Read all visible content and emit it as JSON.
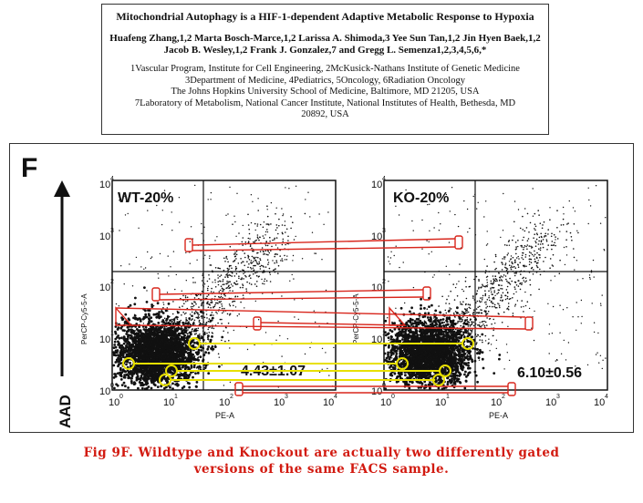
{
  "paper": {
    "title": "Mitochondrial Autophagy is a HIF-1-dependent Adaptive Metabolic Response to Hypoxia",
    "authors_line1": "Huafeng Zhang,1,2 Marta Bosch-Marce,1,2 Larissa A. Shimoda,3 Yee Sun Tan,1,2 Jin Hyen Baek,1,2",
    "authors_line2": "Jacob B. Wesley,1,2 Frank J. Gonzalez,7 and Gregg L. Semenza1,2,3,4,5,6,*",
    "affiliations": [
      "1Vascular Program, Institute for Cell Engineering, 2McKusick-Nathans Institute of Genetic Medicine",
      "3Department of Medicine, 4Pediatrics, 5Oncology, 6Radiation Oncology",
      "The Johns Hopkins University School of Medicine, Baltimore, MD 21205, USA",
      "7Laboratory of Metabolism, National Cancer Institute, National Institutes of Health, Bethesda, MD",
      "20892, USA"
    ]
  },
  "figure": {
    "panel_letter": "F",
    "y_axis_title": "AAD",
    "left_plot": {
      "label": "WT-20%",
      "value": "4.43±1.07",
      "y_axis_label": "PerCP-Cy5-5-A",
      "x_axis_label": "PE-A"
    },
    "right_plot": {
      "label": "KO-20%",
      "value": "6.10±0.56",
      "y_axis_label": "PerCP-Cy5-5-A",
      "x_axis_label": "PE-A"
    },
    "y_ticks": [
      "10",
      "10",
      "10",
      "10",
      "10"
    ],
    "y_tick_exponents": [
      "0",
      "1",
      "2",
      "3",
      "4"
    ],
    "x_ticks": [
      "10",
      "10",
      "10",
      "10",
      "10"
    ],
    "x_tick_exponents": [
      "0",
      "1",
      "2",
      "3",
      "4"
    ],
    "annotation_colors": {
      "red": "#d8261c",
      "yellow": "#e8e000"
    }
  },
  "caption": {
    "line1": "Fig 9F. Wildtype and Knockout are actually two differently gated",
    "line2": "versions of the same FACS sample."
  }
}
